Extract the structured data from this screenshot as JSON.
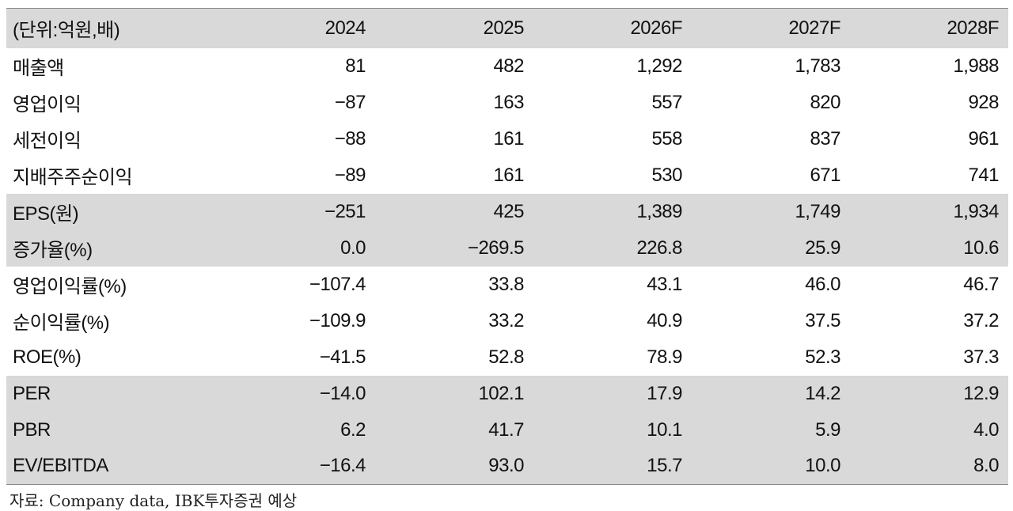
{
  "table": {
    "header": [
      "(단위:억원,배)",
      "2024",
      "2025",
      "2026F",
      "2027F",
      "2028F"
    ],
    "sections": [
      {
        "rows": [
          [
            "매출액",
            "81",
            "482",
            "1,292",
            "1,783",
            "1,988"
          ],
          [
            "영업이익",
            "−87",
            "163",
            "557",
            "820",
            "928"
          ],
          [
            "세전이익",
            "−88",
            "161",
            "558",
            "837",
            "961"
          ],
          [
            "지배주주순이익",
            "−89",
            "161",
            "530",
            "671",
            "741"
          ]
        ]
      },
      {
        "rows": [
          [
            "EPS(원)",
            "−251",
            "425",
            "1,389",
            "1,749",
            "1,934"
          ],
          [
            "증가율(%)",
            "0.0",
            "−269.5",
            "226.8",
            "25.9",
            "10.6"
          ]
        ]
      },
      {
        "rows": [
          [
            "영업이익률(%)",
            "−107.4",
            "33.8",
            "43.1",
            "46.0",
            "46.7"
          ],
          [
            "순이익률(%)",
            "−109.9",
            "33.2",
            "40.9",
            "37.5",
            "37.2"
          ],
          [
            "ROE(%)",
            "−41.5",
            "52.8",
            "78.9",
            "52.3",
            "37.3"
          ]
        ]
      },
      {
        "rows": [
          [
            "PER",
            "−14.0",
            "102.1",
            "17.9",
            "14.2",
            "12.9"
          ],
          [
            "PBR",
            "6.2",
            "41.7",
            "10.1",
            "5.9",
            "4.0"
          ],
          [
            "EV/EBITDA",
            "−16.4",
            "93.0",
            "15.7",
            "10.0",
            "8.0"
          ]
        ]
      }
    ]
  },
  "source": "자료: Company data, IBK투자증권 예상"
}
